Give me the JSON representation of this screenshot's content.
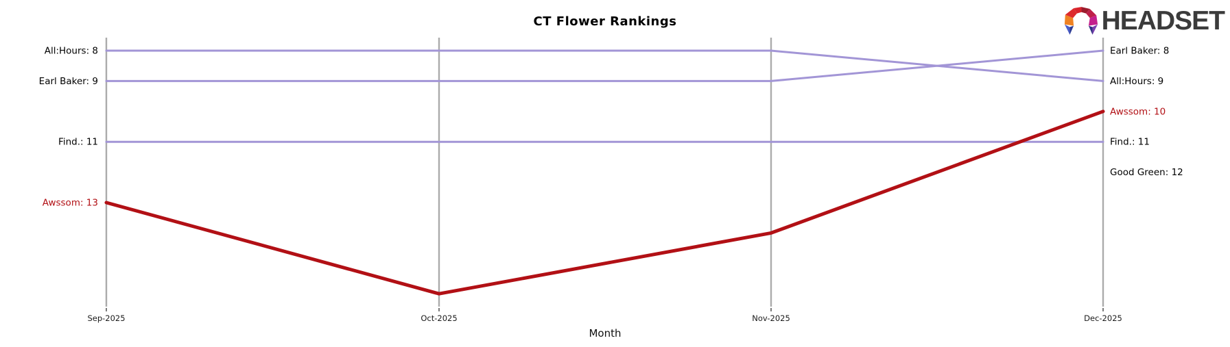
{
  "header": {
    "logo": {
      "text": "HEADSET",
      "icon": "headset-logo-icon"
    }
  },
  "chart_data": {
    "type": "line",
    "title": "CT Flower Rankings",
    "xlabel": "Month",
    "x": [
      "Sep-2025",
      "Oct-2025",
      "Nov-2025",
      "Dec-2025"
    ],
    "y_axis": "rank (lower number = better, plotted top-down, no y tick labels)",
    "ylim": [
      7.55,
      16.45
    ],
    "grid": "vertical gridline at each month, no horizontal gridlines",
    "legend_position": "inline labels at left and right line endpoints",
    "series": [
      {
        "name": "All:Hours",
        "values": [
          8,
          8,
          8,
          9
        ],
        "color": "#a295d6",
        "line_width": 3
      },
      {
        "name": "Earl Baker",
        "values": [
          9,
          9,
          9,
          8
        ],
        "color": "#a295d6",
        "line_width": 3
      },
      {
        "name": "Find.",
        "values": [
          11,
          11,
          11,
          11
        ],
        "color": "#a295d6",
        "line_width": 3
      },
      {
        "name": "Awssom",
        "values": [
          13,
          16,
          14,
          10
        ],
        "color": "#b21015",
        "line_width": 5
      },
      {
        "name": "Good Green",
        "values": [
          null,
          null,
          null,
          12
        ],
        "color": null,
        "line_width": 0
      }
    ],
    "left_labels": [
      {
        "text": "All:Hours: 8",
        "rank": 8,
        "color": "#000000"
      },
      {
        "text": "Earl Baker: 9",
        "rank": 9,
        "color": "#000000"
      },
      {
        "text": "Find.: 11",
        "rank": 11,
        "color": "#000000"
      },
      {
        "text": "Awssom: 13",
        "rank": 13,
        "color": "#b21015"
      }
    ],
    "right_labels": [
      {
        "text": "Earl Baker: 8",
        "rank": 8,
        "color": "#000000"
      },
      {
        "text": "All:Hours: 9",
        "rank": 9,
        "color": "#000000"
      },
      {
        "text": "Awssom: 10",
        "rank": 10,
        "color": "#b21015"
      },
      {
        "text": "Find.: 11",
        "rank": 11,
        "color": "#000000"
      },
      {
        "text": "Good Green: 12",
        "rank": 12,
        "color": "#000000"
      }
    ],
    "colors": {
      "grid": "#ababab",
      "tick": "#333333",
      "tick_label": "#1a1a1a",
      "axis_label": "#111111",
      "purple_line": "#a295d6",
      "red_line": "#b21015"
    }
  }
}
